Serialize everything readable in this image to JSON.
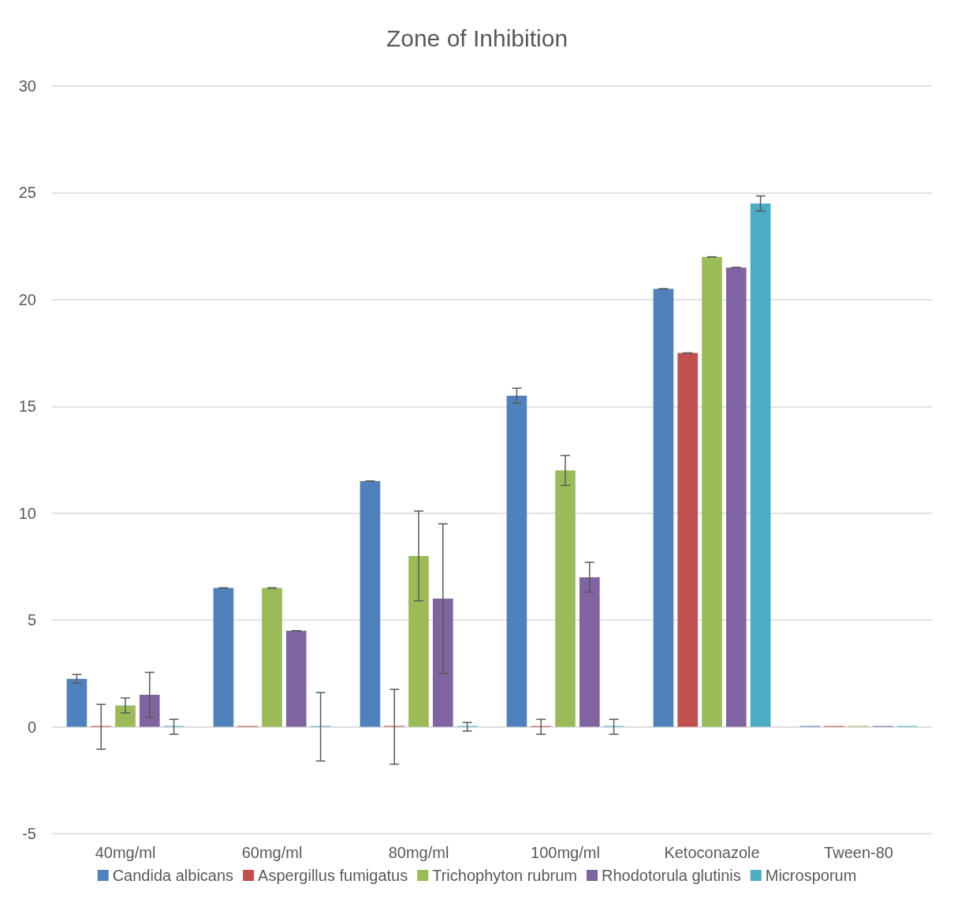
{
  "chart_data": {
    "type": "bar",
    "title": "Zone of Inhibition",
    "categories": [
      "40mg/ml",
      "60mg/ml",
      "80mg/ml",
      "100mg/ml",
      "Ketoconazole",
      "Tween-80"
    ],
    "series": [
      {
        "name": "Candida albicans",
        "color": "#4f81bd",
        "values": [
          2.25,
          6.5,
          11.5,
          15.5,
          20.5,
          0
        ],
        "errors": [
          0.2,
          0,
          0,
          0.35,
          0,
          null
        ]
      },
      {
        "name": "Aspergillus fumigatus",
        "color": "#c0504d",
        "values": [
          0,
          0,
          0,
          0,
          17.5,
          0
        ],
        "errors": [
          1.05,
          null,
          1.75,
          0.35,
          0,
          null
        ]
      },
      {
        "name": "Trichophyton rubrum",
        "color": "#9bbb59",
        "values": [
          1,
          6.5,
          8,
          12,
          22,
          0
        ],
        "errors": [
          0.35,
          0,
          2.1,
          0.7,
          0,
          null
        ]
      },
      {
        "name": "Rhodotorula glutinis",
        "color": "#8064a2",
        "values": [
          1.5,
          4.5,
          6,
          7,
          21.5,
          0
        ],
        "errors": [
          1.05,
          0,
          3.5,
          0.7,
          0,
          null
        ]
      },
      {
        "name": "Microsporum",
        "color": "#4bacc6",
        "values": [
          0,
          0,
          0,
          0,
          24.5,
          0
        ],
        "errors": [
          0.35,
          1.6,
          0.2,
          0.35,
          0.35,
          null
        ]
      }
    ],
    "ylim": [
      -5,
      30
    ],
    "yticks": [
      -5,
      0,
      5,
      10,
      15,
      20,
      25,
      30
    ],
    "grid": "y",
    "legend": "bottom"
  }
}
